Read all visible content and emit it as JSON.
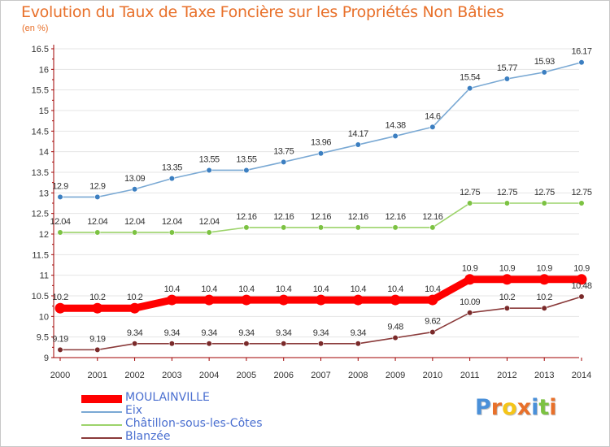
{
  "header": {
    "title": "Evolution du Taux de Taxe Foncière sur les Propriétés Non Bâties",
    "unit": "(en %)"
  },
  "colors": {
    "title": "#e8702a",
    "axis": "#a00000",
    "grid": "#e4e4e4",
    "text": "#333333"
  },
  "logo": {
    "letters": [
      "P",
      "r",
      "o",
      "x",
      "i",
      "t",
      "i"
    ],
    "colors": [
      "#4a90d9",
      "#e8702a",
      "#f5c518",
      "#e8702a",
      "#4a90d9",
      "#7cc242",
      "#e8702a"
    ]
  },
  "chart_data": {
    "type": "line",
    "x": [
      "2000",
      "2001",
      "2002",
      "2003",
      "2004",
      "2005",
      "2006",
      "2007",
      "2008",
      "2009",
      "2010",
      "2011",
      "2012",
      "2013",
      "2014"
    ],
    "y_ticks": [
      "9",
      "9.5",
      "10",
      "10.5",
      "11",
      "11.5",
      "12",
      "12.5",
      "13",
      "13.5",
      "14",
      "14.5",
      "15",
      "15.5",
      "16",
      "16.5"
    ],
    "ylim": [
      9,
      16.5
    ],
    "grid": "horizontal",
    "legend_position": "bottom-left",
    "series": [
      {
        "name": "Eix",
        "color": "#7aa9d4",
        "marker": "#3c7fc1",
        "values": [
          12.9,
          12.9,
          13.09,
          13.35,
          13.55,
          13.55,
          13.75,
          13.96,
          14.17,
          14.38,
          14.6,
          15.54,
          15.77,
          15.93,
          16.17
        ],
        "labels": [
          "12.9",
          "12.9",
          "13.09",
          "13.35",
          "13.55",
          "13.55",
          "13.75",
          "13.96",
          "14.17",
          "14.38",
          "14.6",
          "15.54",
          "15.77",
          "15.93",
          "16.17"
        ]
      },
      {
        "name": "Châtillon-sous-les-Côtes",
        "color": "#9cd36a",
        "marker": "#7cc242",
        "values": [
          12.04,
          12.04,
          12.04,
          12.04,
          12.04,
          12.16,
          12.16,
          12.16,
          12.16,
          12.16,
          12.16,
          12.75,
          12.75,
          12.75,
          12.75
        ],
        "labels": [
          "12.04",
          "12.04",
          "12.04",
          "12.04",
          "12.04",
          "12.16",
          "12.16",
          "12.16",
          "12.16",
          "12.16",
          "12.16",
          "12.75",
          "12.75",
          "12.75",
          "12.75"
        ]
      },
      {
        "name": "MOULAINVILLE",
        "color": "#ff0000",
        "marker": "#ff0000",
        "values": [
          10.2,
          10.2,
          10.2,
          10.4,
          10.4,
          10.4,
          10.4,
          10.4,
          10.4,
          10.4,
          10.4,
          10.9,
          10.9,
          10.9,
          10.9
        ],
        "labels": [
          "10.2",
          "10.2",
          "10.2",
          "10.4",
          "10.4",
          "10.4",
          "10.4",
          "10.4",
          "10.4",
          "10.4",
          "10.4",
          "10.9",
          "10.9",
          "10.9",
          "10.9"
        ]
      },
      {
        "name": "Blanzée",
        "color": "#8a3a3a",
        "marker": "#7a2a2a",
        "values": [
          9.19,
          9.19,
          9.34,
          9.34,
          9.34,
          9.34,
          9.34,
          9.34,
          9.34,
          9.48,
          9.62,
          10.09,
          10.2,
          10.2,
          10.48
        ],
        "labels": [
          "9.19",
          "9.19",
          "9.34",
          "9.34",
          "9.34",
          "9.34",
          "9.34",
          "9.34",
          "9.34",
          "9.48",
          "9.62",
          "10.09",
          "10.2",
          "10.2",
          "10.48"
        ]
      }
    ],
    "legend": [
      {
        "name": "MOULAINVILLE",
        "color": "#ff0000",
        "text_color": "#4a6fd0"
      },
      {
        "name": "Eix",
        "color": "#7aa9d4",
        "text_color": "#4a6fd0"
      },
      {
        "name": "Châtillon-sous-les-Côtes",
        "color": "#9cd36a",
        "text_color": "#4a6fd0"
      },
      {
        "name": "Blanzée",
        "color": "#8a3a3a",
        "text_color": "#4a6fd0"
      }
    ]
  }
}
